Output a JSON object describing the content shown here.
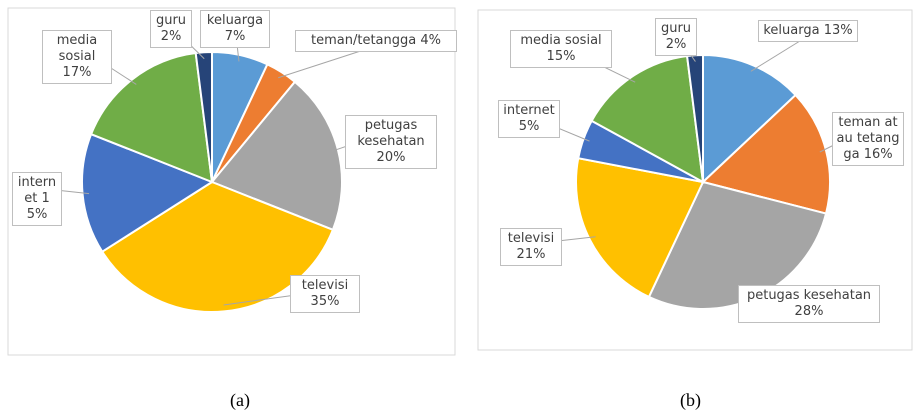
{
  "chart_data": [
    {
      "type": "pie",
      "caption": "(a)",
      "categories": [
        "keluarga",
        "teman/tetangga",
        "petugas kesehatan",
        "televisi",
        "internet",
        "media sosial",
        "guru"
      ],
      "values": [
        7,
        4,
        20,
        35,
        15,
        17,
        2
      ],
      "value_labels": [
        "7%",
        "4%",
        "20%",
        "35%",
        "15%",
        "17%",
        "2%"
      ],
      "colors": [
        "#5b9bd5",
        "#ed7d31",
        "#a5a5a5",
        "#ffc000",
        "#4472c4",
        "#70ad47",
        "#264478"
      ]
    },
    {
      "type": "pie",
      "caption": "(b)",
      "categories": [
        "keluarga",
        "teman atau tetangga",
        "petugas kesehatan",
        "televisi",
        "internet",
        "media sosial",
        "guru"
      ],
      "values": [
        13,
        16,
        28,
        21,
        5,
        15,
        2
      ],
      "value_labels": [
        "13%",
        "16%",
        "28%",
        "21%",
        "5%",
        "15%",
        "2%"
      ],
      "colors": [
        "#5b9bd5",
        "#ed7d31",
        "#a5a5a5",
        "#ffc000",
        "#4472c4",
        "#70ad47",
        "#264478"
      ]
    }
  ]
}
